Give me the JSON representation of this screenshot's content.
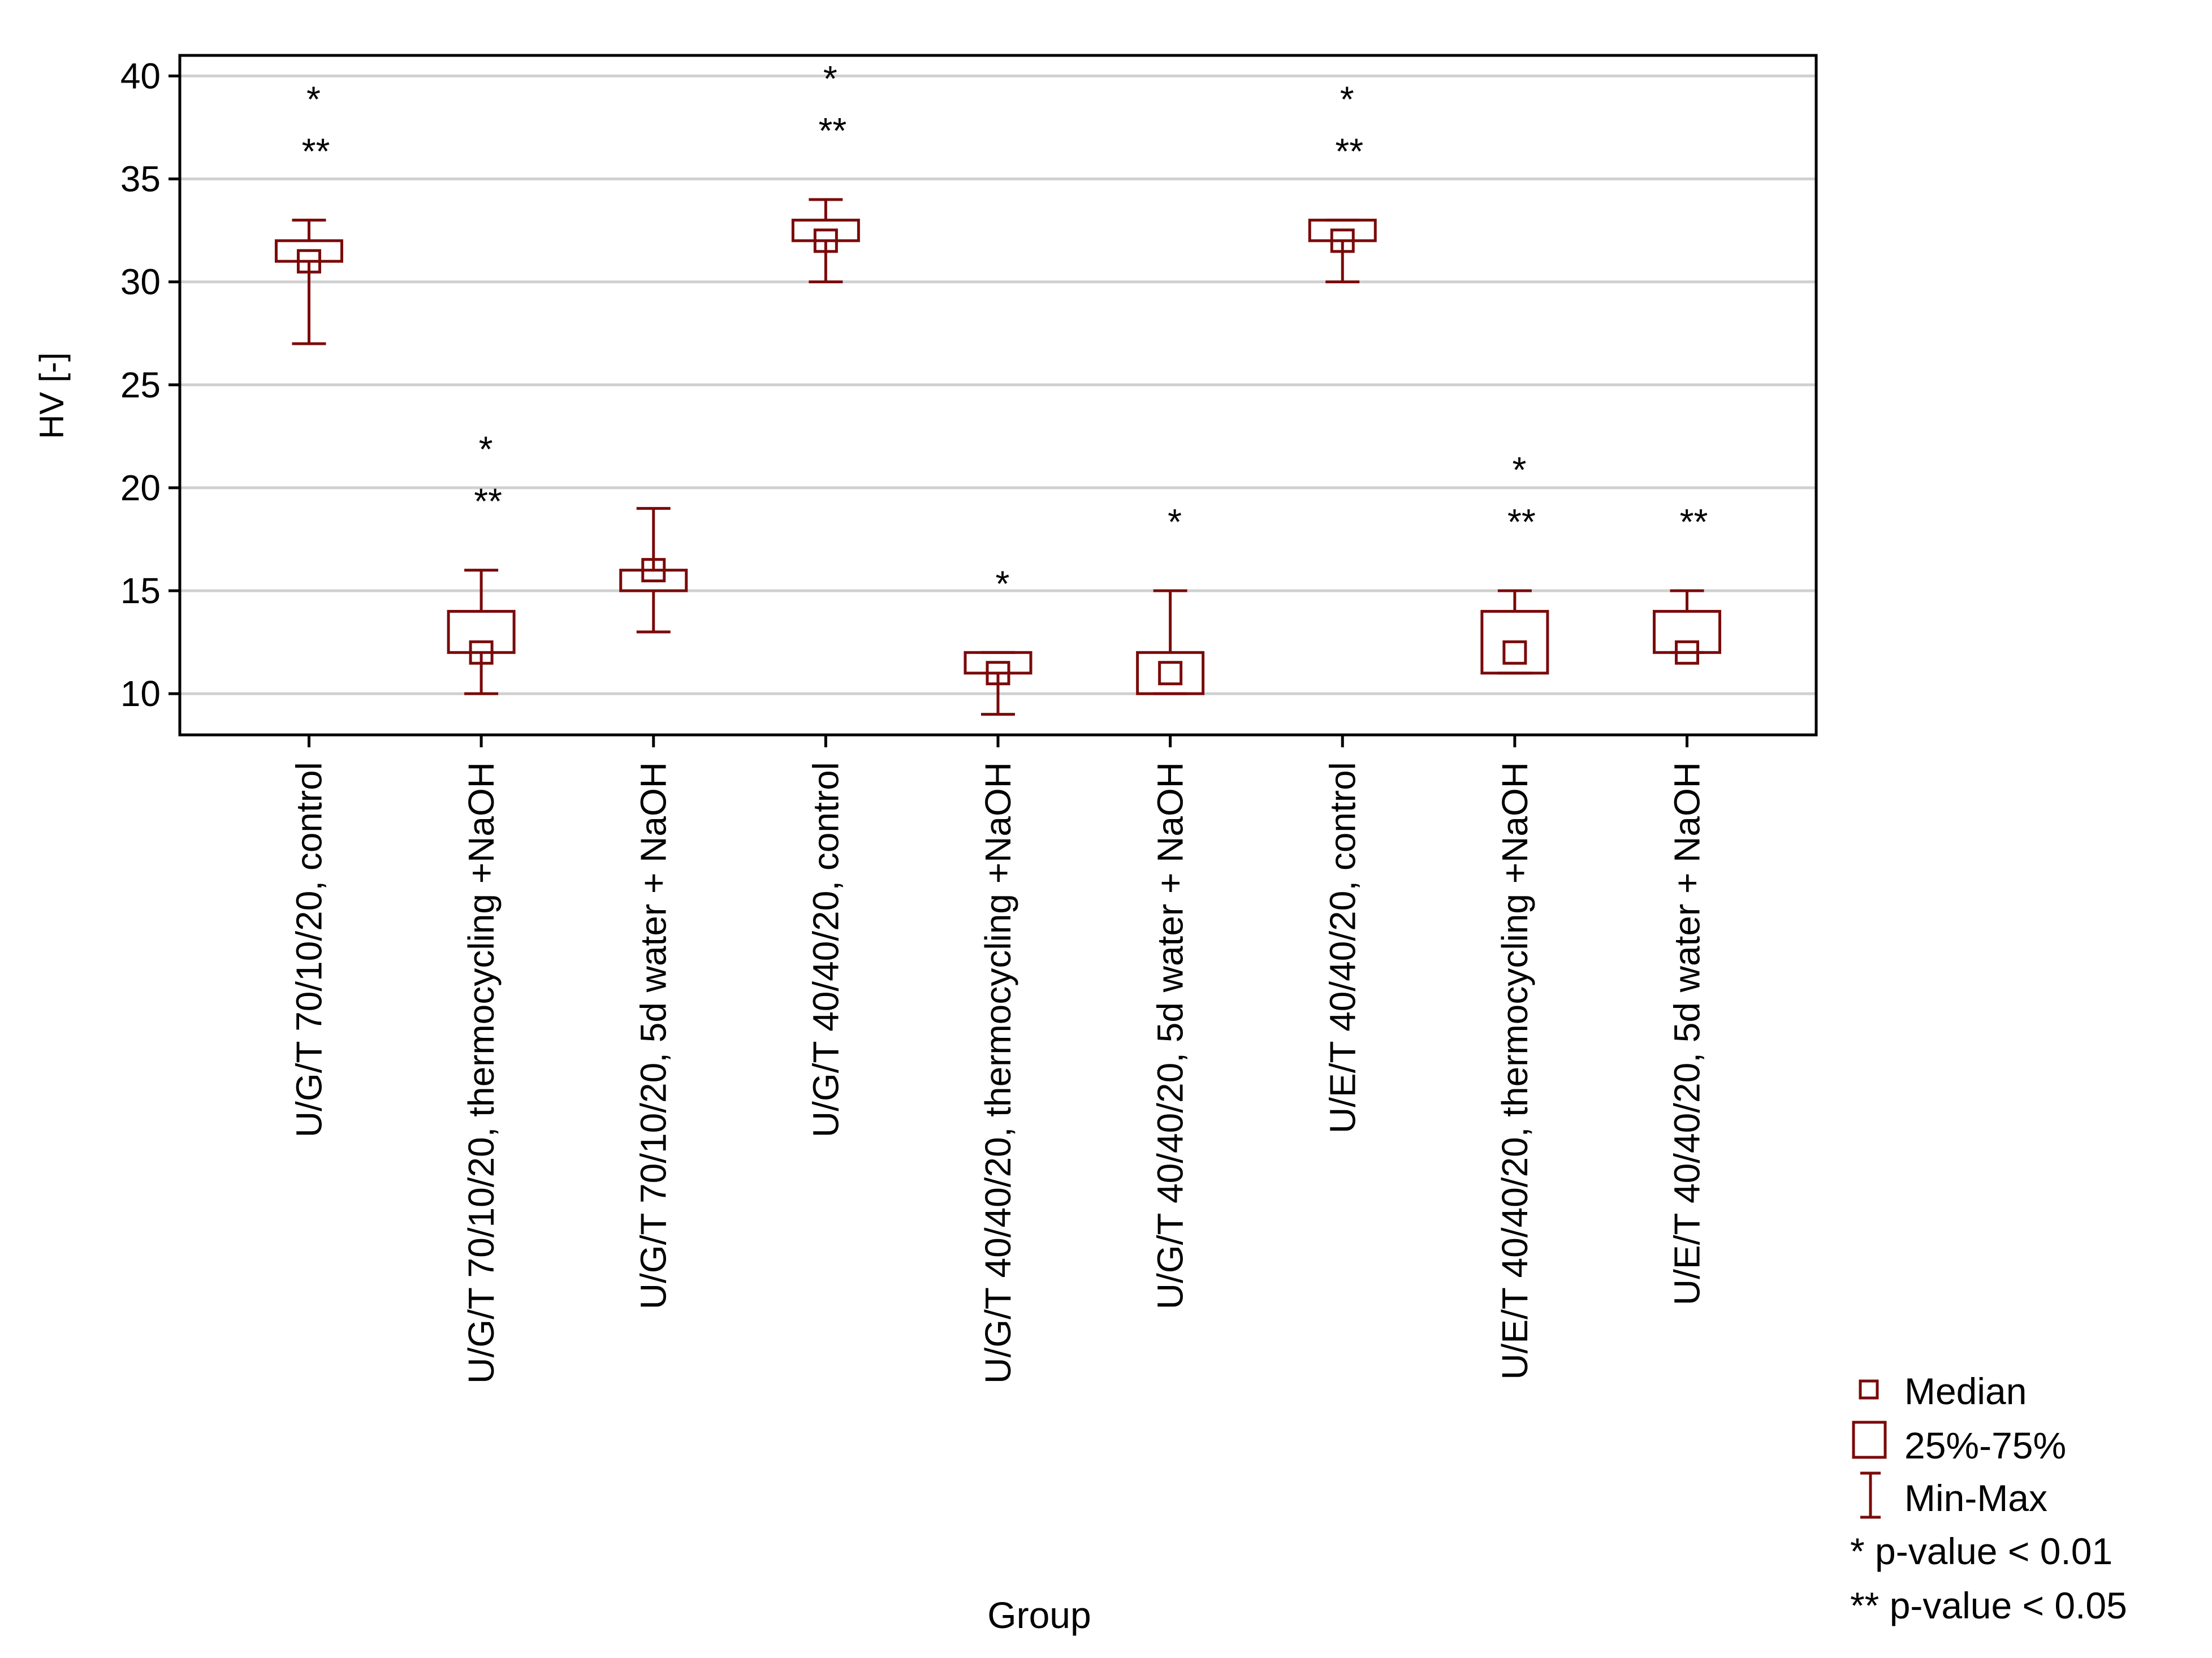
{
  "chart_data": {
    "type": "box",
    "title": "",
    "xlabel": "Group",
    "ylabel": "HV [-]",
    "ylim": [
      8,
      41
    ],
    "yticks": [
      10,
      15,
      20,
      25,
      30,
      35,
      40
    ],
    "grid": true,
    "box_color": "#7a0a0a",
    "categories": [
      "U/G/T 70/10/20, control",
      "U/G/T 70/10/20, thermocycling +NaOH",
      "U/G/T 70/10/20, 5d water + NaOH",
      "U/G/T 40/40/20, control",
      "U/G/T 40/40/20, thermocycling +NaOH",
      "U/G/T 40/40/20, 5d water + NaOH",
      "U/E/T 40/40/20, control",
      "U/E/T 40/40/20, thermocycling +NaOH",
      "U/E/T 40/40/20, 5d water + NaOH"
    ],
    "groups": [
      {
        "min": 27,
        "q1": 31,
        "median": 31,
        "q3": 32,
        "max": 33,
        "markers": [
          "*",
          "**"
        ]
      },
      {
        "min": 10,
        "q1": 12,
        "median": 12,
        "q3": 14,
        "max": 16,
        "markers": [
          "*",
          "**"
        ]
      },
      {
        "min": 13,
        "q1": 15,
        "median": 16,
        "q3": 16,
        "max": 19,
        "markers": []
      },
      {
        "min": 30,
        "q1": 32,
        "median": 32,
        "q3": 33,
        "max": 34,
        "markers": [
          "*",
          "**"
        ]
      },
      {
        "min": 9,
        "q1": 11,
        "median": 11,
        "q3": 12,
        "max": 12,
        "markers": [
          "*"
        ]
      },
      {
        "min": 10,
        "q1": 10,
        "median": 11,
        "q3": 12,
        "max": 15,
        "markers": [
          "*"
        ]
      },
      {
        "min": 30,
        "q1": 32,
        "median": 32,
        "q3": 33,
        "max": 33,
        "markers": [
          "*",
          "**"
        ]
      },
      {
        "min": 11,
        "q1": 11,
        "median": 12,
        "q3": 14,
        "max": 15,
        "markers": [
          "*",
          "**"
        ]
      },
      {
        "min": 12,
        "q1": 12,
        "median": 12,
        "q3": 14,
        "max": 15,
        "markers": [
          "**"
        ]
      }
    ],
    "legend": {
      "position": "bottom-right",
      "items": [
        {
          "symbol": "median",
          "label": "Median"
        },
        {
          "symbol": "box",
          "label": "25%-75%"
        },
        {
          "symbol": "whisker",
          "label": "Min-Max"
        },
        {
          "symbol": "text",
          "label": "* p-value < 0.01"
        },
        {
          "symbol": "text",
          "label": "** p-value < 0.05"
        }
      ]
    }
  }
}
